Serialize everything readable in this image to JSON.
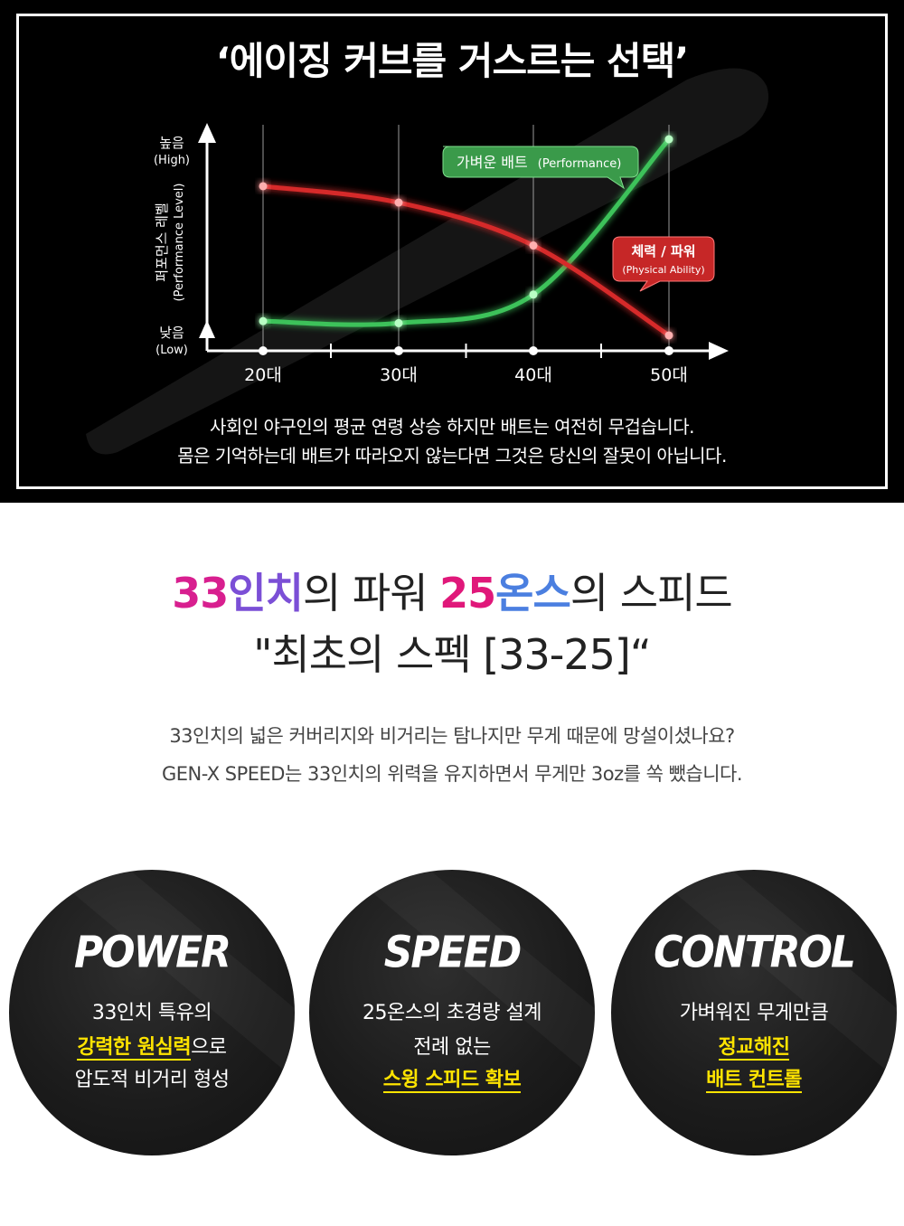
{
  "top": {
    "title": "‘에이징 커브를 거스르는 선택’",
    "caption_1": "사회인 야구인의 평균 연령 상승 하지만 배트는 여전히 무겁습니다.",
    "caption_2": "몸은 기억하는데 배트가 따라오지 않는다면 그것은 당신의 잘못이 아닙니다."
  },
  "chart_data": {
    "type": "line",
    "title": "",
    "categories": [
      "20대",
      "30대",
      "40대",
      "50대"
    ],
    "ylabel": "퍼포먼스 레벨",
    "ylabel_en": "(Performance Level)",
    "y_high_label": "높음",
    "y_high_label_en": "(High)",
    "y_low_label": "낮음",
    "y_low_label_en": "(Low)",
    "ylim": [
      0,
      100
    ],
    "grid": true,
    "series": [
      {
        "name": "가벼운 배트",
        "name_en": "(Performance)",
        "color": "#3cc25a",
        "values": [
          11,
          10,
          24,
          100
        ]
      },
      {
        "name": "체력 / 파워",
        "name_en": "(Physical Ability)",
        "color": "#d62b2b",
        "values": [
          77,
          69,
          48,
          4
        ]
      }
    ]
  },
  "headline": {
    "part_a1": "33",
    "part_a2": "인치",
    "part_a3": "의 파워 ",
    "part_b1": "25",
    "part_b2": "온스",
    "part_b3": "의 스피드",
    "line_2": "\"최초의 스펙 [33-25]“"
  },
  "body": {
    "line_1": "33인치의 넓은 커버리지와 비거리는 탐나지만 무게 때문에 망설이셨나요?",
    "line_2": "GEN-X SPEED는 33인치의 위력을 유지하면서 무게만 3oz를 쏙 뺐습니다."
  },
  "features": {
    "power": {
      "title": "POWER",
      "line_1": "33인치 특유의",
      "line_2_highlight": "강력한 원심력",
      "line_2_rest": "으로",
      "line_3": "압도적 비거리 형성"
    },
    "speed": {
      "title": "SPEED",
      "line_1": "25온스의 초경량 설계",
      "line_2": "전례 없는",
      "line_3_highlight": "스윙 스피드 확보"
    },
    "control": {
      "title": "CONTROL",
      "line_1": "가벼워진 무게만큼",
      "line_2_highlight": "정교해진",
      "line_3_highlight": "배트 컨트롤"
    }
  },
  "colors": {
    "highlight": "#ffe400",
    "panel_bg": "#000000",
    "green": "#3cc25a",
    "red": "#d62b2b"
  }
}
